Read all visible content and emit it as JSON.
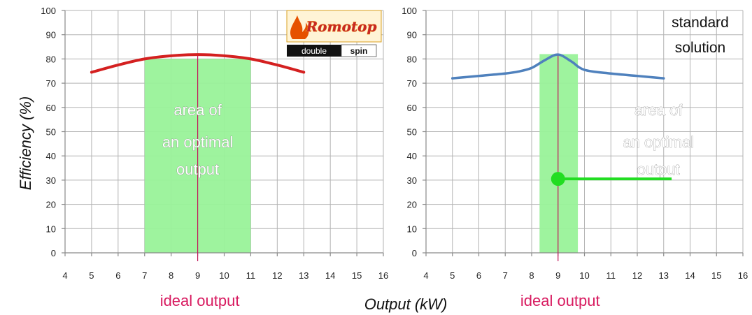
{
  "ylabel": "Efficiency  (%)",
  "xlabel": "Output  (kW)",
  "chart_data": [
    {
      "type": "line",
      "xlim": [
        4,
        16
      ],
      "ylim": [
        0,
        100
      ],
      "x_ticks": [
        4,
        5,
        6,
        7,
        8,
        9,
        10,
        11,
        12,
        13,
        14,
        15,
        16
      ],
      "y_ticks": [
        0,
        10,
        20,
        30,
        40,
        50,
        60,
        70,
        80,
        90,
        100
      ],
      "grid": true,
      "series": [
        {
          "color": "#d42020",
          "x": [
            5,
            6,
            7,
            8,
            9,
            10,
            11,
            12,
            13
          ],
          "y": [
            74.5,
            77.5,
            80,
            81.3,
            81.8,
            81.3,
            80,
            77.5,
            74.5
          ]
        }
      ],
      "optimal_band": {
        "x_from": 7,
        "x_to": 11,
        "y_to": 80,
        "color": "#99f299"
      },
      "area_label": [
        "area of",
        "an optimal",
        "output"
      ],
      "ideal_x": 9,
      "ideal_label": "ideal output",
      "logo": {
        "brand": "Romotop",
        "sub_left": "double",
        "sub_right": "spin"
      }
    },
    {
      "type": "line",
      "xlim": [
        4,
        16
      ],
      "ylim": [
        0,
        100
      ],
      "x_ticks": [
        4,
        5,
        6,
        7,
        8,
        9,
        10,
        11,
        12,
        13,
        14,
        15,
        16
      ],
      "y_ticks": [
        0,
        10,
        20,
        30,
        40,
        50,
        60,
        70,
        80,
        90,
        100
      ],
      "grid": true,
      "series": [
        {
          "color": "#4f81bd",
          "x": [
            5,
            6,
            7,
            7.5,
            8,
            8.5,
            9,
            9.5,
            10,
            11,
            12,
            13
          ],
          "y": [
            72,
            73,
            74,
            74.8,
            76.3,
            79.5,
            81.8,
            79,
            75.5,
            74,
            73,
            72
          ]
        }
      ],
      "optimal_band": {
        "x_from": 8.3,
        "x_to": 9.75,
        "y_to": 82,
        "color": "#99f299"
      },
      "area_label": [
        "area of",
        "an optimal",
        "output"
      ],
      "ideal_x": 9,
      "ideal_label": "ideal output",
      "marker": {
        "x": 9,
        "y": 30.5,
        "x_end": 13.3,
        "color": "#22dd22"
      },
      "annotation": [
        "standard",
        "solution"
      ]
    }
  ]
}
